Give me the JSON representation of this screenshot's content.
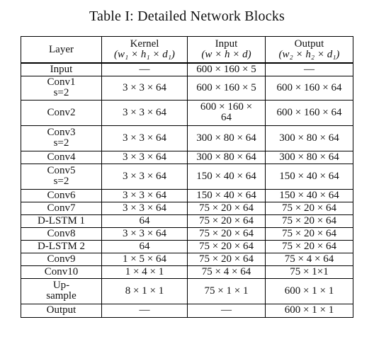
{
  "caption": "Table I: Detailed Network Blocks",
  "columns": [
    {
      "title": "Layer",
      "sub": ""
    },
    {
      "title": "Kernel",
      "sub": "(w₁ × h₁ × d₁)"
    },
    {
      "title": "Input",
      "sub": "(w × h × d)"
    },
    {
      "title": "Output",
      "sub": "(w₂ × h₂ × d₁)"
    }
  ],
  "rows": [
    {
      "layer": [
        "Input"
      ],
      "kernel": "—",
      "input": [
        "600 × 160 × 5"
      ],
      "output": "—"
    },
    {
      "layer": [
        "Conv1",
        "s=2"
      ],
      "kernel": "3 × 3 × 64",
      "input": [
        "600 × 160 × 5"
      ],
      "output": "600 × 160 × 64"
    },
    {
      "layer": [
        "Conv2"
      ],
      "kernel": "3 × 3 × 64",
      "input": [
        "600 × 160 ×",
        "64"
      ],
      "output": "600 × 160 × 64"
    },
    {
      "layer": [
        "Conv3",
        "s=2"
      ],
      "kernel": "3 × 3 × 64",
      "input": [
        "300 × 80 × 64"
      ],
      "output": "300 × 80 × 64"
    },
    {
      "layer": [
        "Conv4"
      ],
      "kernel": "3 × 3 × 64",
      "input": [
        "300 × 80 × 64"
      ],
      "output": "300 × 80 × 64"
    },
    {
      "layer": [
        "Conv5",
        "s=2"
      ],
      "kernel": "3 × 3 × 64",
      "input": [
        "150 × 40 × 64"
      ],
      "output": "150 × 40 × 64"
    },
    {
      "layer": [
        "Conv6"
      ],
      "kernel": "3 × 3 × 64",
      "input": [
        "150 × 40 × 64"
      ],
      "output": "150 × 40 × 64"
    },
    {
      "layer": [
        "Conv7"
      ],
      "kernel": "3 × 3 × 64",
      "input": [
        "75 × 20 × 64"
      ],
      "output": "75 × 20 × 64"
    },
    {
      "layer": [
        "D-LSTM 1"
      ],
      "kernel": "64",
      "input": [
        "75 × 20 × 64"
      ],
      "output": "75 × 20 × 64"
    },
    {
      "layer": [
        "Conv8"
      ],
      "kernel": "3 × 3 × 64",
      "input": [
        "75 × 20 × 64"
      ],
      "output": "75 × 20 × 64"
    },
    {
      "layer": [
        "D-LSTM 2"
      ],
      "kernel": "64",
      "input": [
        "75 × 20 × 64"
      ],
      "output": "75 × 20 × 64"
    },
    {
      "layer": [
        "Conv9"
      ],
      "kernel": "1 × 5 × 64",
      "input": [
        "75 × 20 × 64"
      ],
      "output": "75 × 4 × 64"
    },
    {
      "layer": [
        "Conv10"
      ],
      "kernel": "1 × 4 × 1",
      "input": [
        "75 × 4 × 64"
      ],
      "output": "75 × 1×1"
    },
    {
      "layer": [
        "Up-",
        "sample"
      ],
      "kernel": "8 × 1 × 1",
      "input": [
        "75 × 1 × 1"
      ],
      "output": "600 × 1 × 1"
    },
    {
      "layer": [
        "Output"
      ],
      "kernel": "—",
      "input": [
        "—"
      ],
      "output": "600 × 1 × 1"
    }
  ]
}
